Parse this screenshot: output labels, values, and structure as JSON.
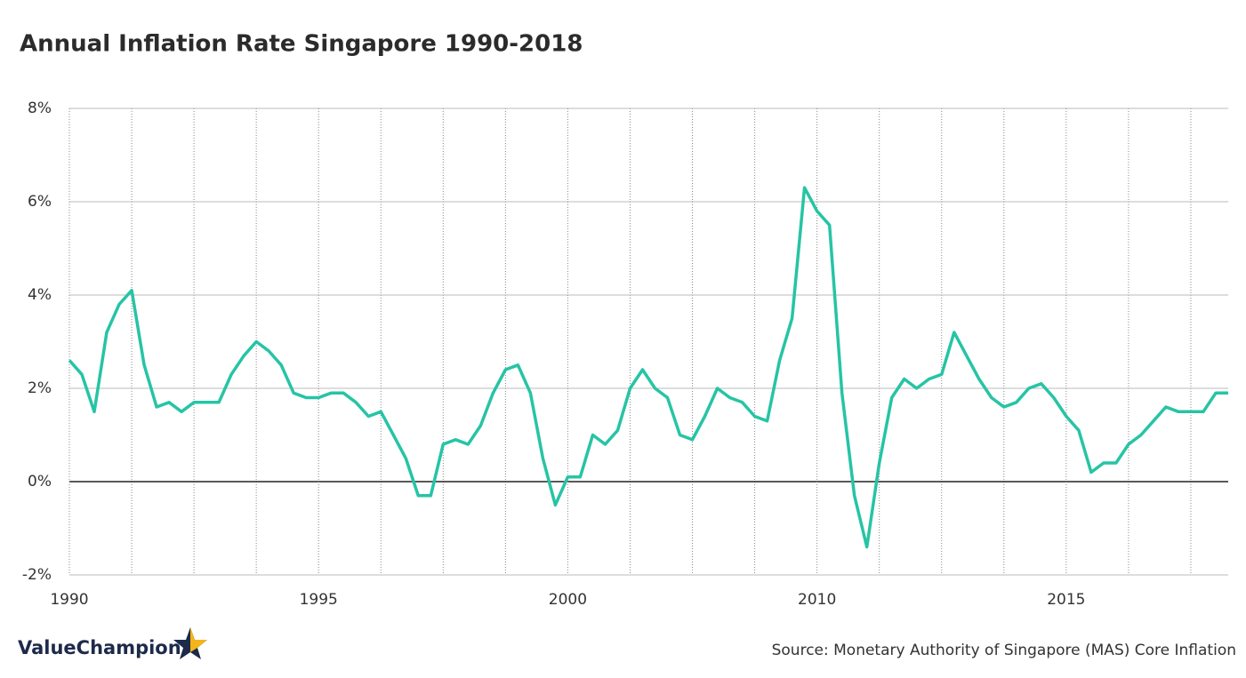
{
  "chart_data": {
    "type": "line",
    "title": "Annual Inflation Rate Singapore 1990-2018",
    "source": "Source: Monetary Authority of Singapore (MAS) Core Inflation",
    "brand": "ValueChampion",
    "color": "#26c4a5",
    "categories": [
      "1990",
      null,
      null,
      null,
      null,
      null,
      null,
      null,
      null,
      null,
      null,
      null,
      null,
      null,
      null,
      null,
      null,
      null,
      null,
      null,
      "1995",
      null,
      null,
      null,
      null,
      null,
      null,
      null,
      null,
      null,
      null,
      null,
      null,
      null,
      null,
      null,
      null,
      null,
      null,
      null,
      "2000",
      null,
      null,
      null,
      null,
      null,
      null,
      null,
      null,
      null,
      null,
      null,
      null,
      null,
      null,
      null,
      null,
      null,
      null,
      null,
      "2010",
      null,
      null,
      null,
      null,
      null,
      null,
      null,
      null,
      null,
      null,
      null,
      null,
      null,
      null,
      null,
      null,
      null,
      null,
      null,
      "2015",
      null,
      null,
      null,
      null,
      null,
      null,
      null,
      null,
      null,
      null,
      null,
      null,
      null
    ],
    "values": [
      2.6,
      2.3,
      1.5,
      3.2,
      3.8,
      4.1,
      2.5,
      1.6,
      1.7,
      1.5,
      1.7,
      1.7,
      1.7,
      2.3,
      2.7,
      3.0,
      2.8,
      2.5,
      1.9,
      1.8,
      1.8,
      1.9,
      1.9,
      1.7,
      1.4,
      1.5,
      1.0,
      0.5,
      -0.3,
      -0.3,
      0.8,
      0.9,
      0.8,
      1.2,
      1.9,
      2.4,
      2.5,
      1.9,
      0.5,
      -0.5,
      0.1,
      0.1,
      1.0,
      0.8,
      1.1,
      2.0,
      2.4,
      2.0,
      1.8,
      1.0,
      0.9,
      1.4,
      2.0,
      1.8,
      1.7,
      1.4,
      1.3,
      2.6,
      3.5,
      6.3,
      5.8,
      5.5,
      1.9,
      -0.3,
      -1.4,
      0.4,
      1.8,
      2.2,
      2.0,
      2.2,
      2.3,
      3.2,
      2.7,
      2.2,
      1.8,
      1.6,
      1.7,
      2.0,
      2.1,
      1.8,
      1.4,
      1.1,
      0.2,
      0.4,
      0.4,
      0.8,
      1.0,
      1.3,
      1.6,
      1.5,
      1.5,
      1.5,
      1.9,
      1.9
    ],
    "ylim": [
      -2,
      8
    ],
    "yticks": [
      {
        "value": -2,
        "label": "-2%"
      },
      {
        "value": 0,
        "label": "0%"
      },
      {
        "value": 2,
        "label": "2%"
      },
      {
        "value": 4,
        "label": "4%"
      },
      {
        "value": 6,
        "label": "6%"
      },
      {
        "value": 8,
        "label": "8%"
      }
    ],
    "grid": true
  }
}
